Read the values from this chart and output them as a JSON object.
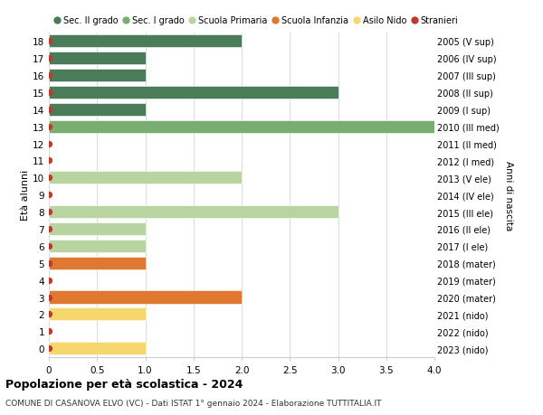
{
  "ages": [
    0,
    1,
    2,
    3,
    4,
    5,
    6,
    7,
    8,
    9,
    10,
    11,
    12,
    13,
    14,
    15,
    16,
    17,
    18
  ],
  "years": [
    "2023 (nido)",
    "2022 (nido)",
    "2021 (nido)",
    "2020 (mater)",
    "2019 (mater)",
    "2018 (mater)",
    "2017 (I ele)",
    "2016 (II ele)",
    "2015 (III ele)",
    "2014 (IV ele)",
    "2013 (V ele)",
    "2012 (I med)",
    "2011 (II med)",
    "2010 (III med)",
    "2009 (I sup)",
    "2008 (II sup)",
    "2007 (III sup)",
    "2006 (IV sup)",
    "2005 (V sup)"
  ],
  "values": [
    1,
    0,
    1,
    2,
    0,
    1,
    1,
    1,
    3,
    0,
    2,
    0,
    0,
    4,
    1,
    3,
    1,
    1,
    2
  ],
  "categories": [
    "Sec. II grado",
    "Sec. I grado",
    "Scuola Primaria",
    "Scuola Infanzia",
    "Asilo Nido",
    "Stranieri"
  ],
  "bar_colors": [
    "#4a7c59",
    "#7aad72",
    "#b8d4a0",
    "#e07832",
    "#f5d76e",
    "#c0392b"
  ],
  "age_to_category": {
    "18": "Sec. II grado",
    "17": "Sec. II grado",
    "16": "Sec. II grado",
    "15": "Sec. II grado",
    "14": "Sec. II grado",
    "13": "Sec. I grado",
    "12": "Sec. I grado",
    "11": "Sec. I grado",
    "10": "Scuola Primaria",
    "9": "Scuola Primaria",
    "8": "Scuola Primaria",
    "7": "Scuola Primaria",
    "6": "Scuola Primaria",
    "5": "Scuola Infanzia",
    "4": "Scuola Infanzia",
    "3": "Scuola Infanzia",
    "2": "Asilo Nido",
    "1": "Asilo Nido",
    "0": "Asilo Nido"
  },
  "xlim": [
    0,
    4.0
  ],
  "ylabel_left": "Età alunni",
  "ylabel_right": "Anni di nascita",
  "title": "Popolazione per età scolastica - 2024",
  "subtitle": "COMUNE DI CASANOVA ELVO (VC) - Dati ISTAT 1° gennaio 2024 - Elaborazione TUTTITALIA.IT",
  "background_color": "#ffffff",
  "grid_color": "#cccccc",
  "dot_color": "#c0392b",
  "dot_size": 18
}
